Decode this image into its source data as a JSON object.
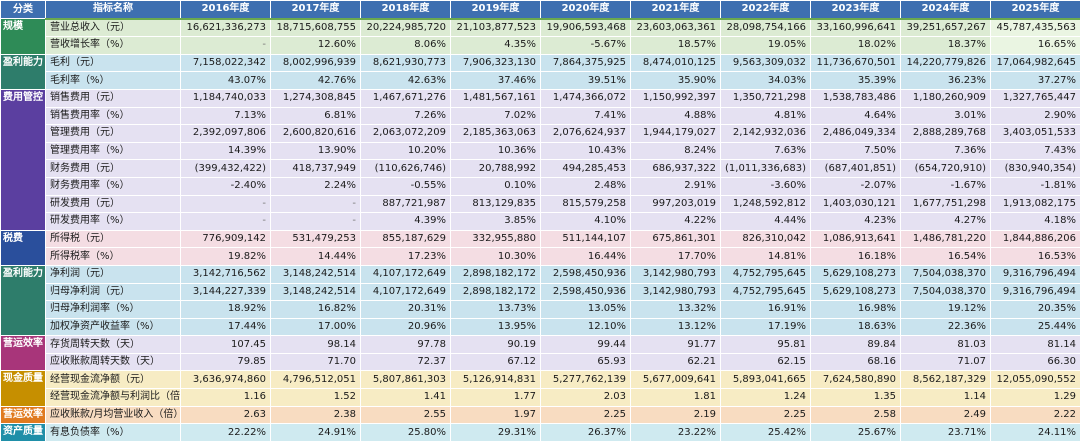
{
  "header": {
    "category": "分类",
    "metric": "指标名称",
    "years": [
      "2016年度",
      "2017年度",
      "2018年度",
      "2019年度",
      "2020年度",
      "2021年度",
      "2022年度",
      "2023年度",
      "2024年度",
      "2025年度"
    ]
  },
  "groups": [
    {
      "label": "规模",
      "color": "#2e8b57",
      "rows": [
        {
          "name": "营业总收入（元）",
          "values": [
            "16,621,336,273",
            "18,715,608,755",
            "20,224,985,720",
            "21,103,877,523",
            "19,906,593,468",
            "23,603,063,361",
            "28,098,754,166",
            "33,160,996,641",
            "39,251,657,267",
            "45,787,435,563"
          ]
        },
        {
          "name": "营收增长率（%）",
          "values": [
            "-",
            "12.60%",
            "8.06%",
            "4.35%",
            "-5.67%",
            "18.57%",
            "19.05%",
            "18.02%",
            "18.37%",
            "16.65%"
          ]
        }
      ]
    },
    {
      "label": "盈利能力",
      "color": "#2e7d6b",
      "rows": [
        {
          "name": "毛利（元）",
          "values": [
            "7,158,022,342",
            "8,002,996,939",
            "8,621,930,773",
            "7,906,323,130",
            "7,864,375,925",
            "8,474,010,125",
            "9,563,309,032",
            "11,736,670,501",
            "14,220,779,826",
            "17,064,982,645"
          ]
        },
        {
          "name": "毛利率（%）",
          "values": [
            "43.07%",
            "42.76%",
            "42.63%",
            "37.46%",
            "39.51%",
            "35.90%",
            "34.03%",
            "35.39%",
            "36.23%",
            "37.27%"
          ]
        }
      ]
    },
    {
      "label": "费用管控",
      "color": "#5b3fa0",
      "rows": [
        {
          "name": "销售费用（元）",
          "values": [
            "1,184,740,033",
            "1,274,308,845",
            "1,467,671,276",
            "1,481,567,161",
            "1,474,366,072",
            "1,150,992,397",
            "1,350,721,298",
            "1,538,783,486",
            "1,180,260,909",
            "1,327,765,447"
          ]
        },
        {
          "name": "销售费用率（%）",
          "values": [
            "7.13%",
            "6.81%",
            "7.26%",
            "7.02%",
            "7.41%",
            "4.88%",
            "4.81%",
            "4.64%",
            "3.01%",
            "2.90%"
          ]
        },
        {
          "name": "管理费用（元）",
          "values": [
            "2,392,097,806",
            "2,600,820,616",
            "2,063,072,209",
            "2,185,363,063",
            "2,076,624,937",
            "1,944,179,027",
            "2,142,932,036",
            "2,486,049,334",
            "2,888,289,768",
            "3,403,051,533"
          ]
        },
        {
          "name": "管理费用率（%）",
          "values": [
            "14.39%",
            "13.90%",
            "10.20%",
            "10.36%",
            "10.43%",
            "8.24%",
            "7.63%",
            "7.50%",
            "7.36%",
            "7.43%"
          ]
        },
        {
          "name": "财务费用（元）",
          "values": [
            "(399,432,422)",
            "418,737,949",
            "(110,626,746)",
            "20,788,992",
            "494,285,453",
            "686,937,322",
            "(1,011,336,683)",
            "(687,401,851)",
            "(654,720,910)",
            "(830,940,354)"
          ]
        },
        {
          "name": "财务费用率（%）",
          "values": [
            "-2.40%",
            "2.24%",
            "-0.55%",
            "0.10%",
            "2.48%",
            "2.91%",
            "-3.60%",
            "-2.07%",
            "-1.67%",
            "-1.81%"
          ]
        },
        {
          "name": "研发费用（元）",
          "values": [
            "-",
            "-",
            "887,721,987",
            "813,129,835",
            "815,579,258",
            "997,203,019",
            "1,248,592,812",
            "1,403,030,121",
            "1,677,751,298",
            "1,913,082,175"
          ]
        },
        {
          "name": "研发费用率（%）",
          "values": [
            "-",
            "-",
            "4.39%",
            "3.85%",
            "4.10%",
            "4.22%",
            "4.44%",
            "4.23%",
            "4.27%",
            "4.18%"
          ]
        }
      ]
    },
    {
      "label": "税费",
      "color": "#2a4f9c",
      "rows": [
        {
          "name": "所得税（元）",
          "values": [
            "776,909,142",
            "531,479,253",
            "855,187,629",
            "332,955,880",
            "511,144,107",
            "675,861,301",
            "826,310,042",
            "1,086,913,641",
            "1,486,781,220",
            "1,844,886,206"
          ]
        },
        {
          "name": "所得税率（%）",
          "values": [
            "19.82%",
            "14.44%",
            "17.23%",
            "10.30%",
            "16.44%",
            "17.70%",
            "14.81%",
            "16.18%",
            "16.54%",
            "16.53%"
          ]
        }
      ]
    },
    {
      "label": "盈利能力",
      "color": "#2e7d6b",
      "rows": [
        {
          "name": "净利润（元）",
          "values": [
            "3,142,716,562",
            "3,148,242,514",
            "4,107,172,649",
            "2,898,182,172",
            "2,598,450,936",
            "3,142,980,793",
            "4,752,795,645",
            "5,629,108,273",
            "7,504,038,370",
            "9,316,796,494"
          ]
        },
        {
          "name": "归母净利润（元）",
          "values": [
            "3,144,227,339",
            "3,148,242,514",
            "4,107,172,649",
            "2,898,182,172",
            "2,598,450,936",
            "3,142,980,793",
            "4,752,795,645",
            "5,629,108,273",
            "7,504,038,370",
            "9,316,796,494"
          ]
        },
        {
          "name": "归母净利润率（%）",
          "values": [
            "18.92%",
            "16.82%",
            "20.31%",
            "13.73%",
            "13.05%",
            "13.32%",
            "16.91%",
            "16.98%",
            "19.12%",
            "20.35%"
          ]
        },
        {
          "name": "加权净资产收益率（%）",
          "values": [
            "17.44%",
            "17.00%",
            "20.96%",
            "13.95%",
            "12.10%",
            "13.12%",
            "17.19%",
            "18.63%",
            "22.36%",
            "25.44%"
          ]
        }
      ]
    },
    {
      "label": "营运效率",
      "color": "#a8357a",
      "rows": [
        {
          "name": "存货周转天数（天）",
          "values": [
            "107.45",
            "98.14",
            "97.78",
            "90.19",
            "99.44",
            "91.77",
            "95.81",
            "89.84",
            "81.03",
            "81.14"
          ]
        },
        {
          "name": "应收账款周转天数（天）",
          "values": [
            "79.85",
            "71.70",
            "72.37",
            "67.12",
            "65.93",
            "62.21",
            "62.15",
            "68.16",
            "71.07",
            "66.30"
          ]
        }
      ]
    },
    {
      "label": "现金质量",
      "color": "#c68f00",
      "rows": [
        {
          "name": "经营现金流净额（元）",
          "values": [
            "3,636,974,860",
            "4,796,512,051",
            "5,807,861,303",
            "5,126,914,831",
            "5,277,762,139",
            "5,677,009,641",
            "5,893,041,665",
            "7,624,580,890",
            "8,562,187,329",
            "12,055,090,552"
          ]
        },
        {
          "name": "经营现金流净额与利润比（倍）",
          "values": [
            "1.16",
            "1.52",
            "1.41",
            "1.77",
            "2.03",
            "1.81",
            "1.24",
            "1.35",
            "1.14",
            "1.29"
          ]
        }
      ]
    },
    {
      "label": "营运效率",
      "color": "#e07a1f",
      "rows": [
        {
          "name": "应收账款/月均营业收入（倍）",
          "values": [
            "2.63",
            "2.38",
            "2.55",
            "1.97",
            "2.25",
            "2.19",
            "2.25",
            "2.58",
            "2.49",
            "2.22"
          ]
        }
      ]
    },
    {
      "label": "资产质量",
      "color": "#1f8fa8",
      "rows": [
        {
          "name": "有息负债率（%）",
          "values": [
            "22.22%",
            "24.91%",
            "25.80%",
            "29.31%",
            "26.37%",
            "23.22%",
            "25.42%",
            "25.67%",
            "23.71%",
            "24.11%"
          ]
        }
      ]
    }
  ]
}
